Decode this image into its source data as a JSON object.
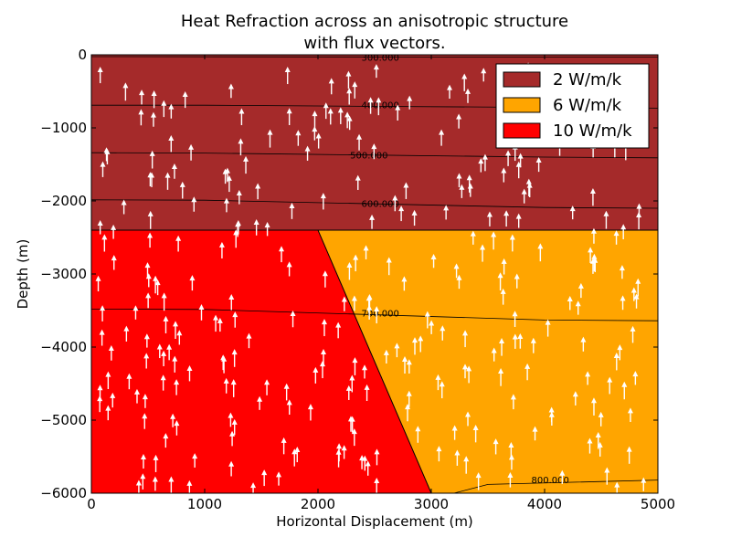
{
  "chart_data": {
    "type": "heatmap",
    "title_lines": [
      "Heat Refraction across an anisotropic structure",
      "with flux vectors."
    ],
    "xlabel": "Horizontal Displacement (m)",
    "ylabel": "Depth (m)",
    "xlim": [
      0,
      5000
    ],
    "ylim": [
      -6000,
      0
    ],
    "x_ticks": [
      0,
      1000,
      2000,
      3000,
      4000,
      5000
    ],
    "y_ticks": [
      0,
      -1000,
      -2000,
      -3000,
      -4000,
      -5000,
      -6000
    ],
    "x_tick_labels": [
      "0",
      "1000",
      "2000",
      "3000",
      "4000",
      "5000"
    ],
    "y_tick_labels": [
      "0",
      "−1000",
      "−2000",
      "−3000",
      "−4000",
      "−5000",
      "−6000"
    ],
    "legend_position": "top-right",
    "regions": [
      {
        "name": "2 W/m/k",
        "color": "#a52a2a",
        "polygon": [
          [
            0,
            0
          ],
          [
            5000,
            0
          ],
          [
            5000,
            -2400
          ],
          [
            0,
            -2400
          ]
        ]
      },
      {
        "name": "6 W/m/k",
        "color": "#ffa500",
        "polygon": [
          [
            2000,
            -2400
          ],
          [
            5000,
            -2400
          ],
          [
            5000,
            -6000
          ],
          [
            3000,
            -6000
          ]
        ]
      },
      {
        "name": "10 W/m/k",
        "color": "#ff0000",
        "polygon": [
          [
            0,
            -2400
          ],
          [
            2000,
            -2400
          ],
          [
            3000,
            -6000
          ],
          [
            0,
            -6000
          ]
        ]
      }
    ],
    "contours": [
      {
        "label": "300.000",
        "label_pos": [
          2550,
          -30
        ],
        "points": [
          [
            0,
            -25
          ],
          [
            2200,
            -25
          ],
          [
            3000,
            -30
          ],
          [
            5000,
            -30
          ]
        ]
      },
      {
        "label": "400.000",
        "label_pos": [
          2550,
          -680
        ],
        "points": [
          [
            0,
            -690
          ],
          [
            1000,
            -690
          ],
          [
            2200,
            -700
          ],
          [
            2900,
            -700
          ],
          [
            4000,
            -720
          ],
          [
            5000,
            -730
          ]
        ]
      },
      {
        "label": "500.000",
        "label_pos": [
          2450,
          -1370
        ],
        "points": [
          [
            0,
            -1340
          ],
          [
            1000,
            -1345
          ],
          [
            2100,
            -1360
          ],
          [
            2800,
            -1380
          ],
          [
            4000,
            -1400
          ],
          [
            5000,
            -1410
          ]
        ]
      },
      {
        "label": "600.000",
        "label_pos": [
          2550,
          -2030
        ],
        "points": [
          [
            0,
            -1985
          ],
          [
            1000,
            -1990
          ],
          [
            2200,
            -2010
          ],
          [
            2900,
            -2060
          ],
          [
            4000,
            -2090
          ],
          [
            5000,
            -2100
          ]
        ]
      },
      {
        "label": "700.000",
        "label_pos": [
          2550,
          -3530
        ],
        "points": [
          [
            0,
            -3480
          ],
          [
            1000,
            -3485
          ],
          [
            2200,
            -3500
          ],
          [
            2900,
            -3560
          ],
          [
            4000,
            -3630
          ],
          [
            5000,
            -3640
          ]
        ]
      },
      {
        "label": "800.000",
        "label_pos": [
          4050,
          -5810
        ],
        "points": [
          [
            3200,
            -6000
          ],
          [
            3500,
            -5880
          ],
          [
            3800,
            -5860
          ],
          [
            4400,
            -5830
          ],
          [
            5000,
            -5820
          ]
        ]
      }
    ],
    "flux_vectors": {
      "color": "#ffffff",
      "direction": "upward",
      "domain_x": [
        60,
        4880
      ],
      "domain_y": [
        -5960,
        -150
      ]
    }
  }
}
